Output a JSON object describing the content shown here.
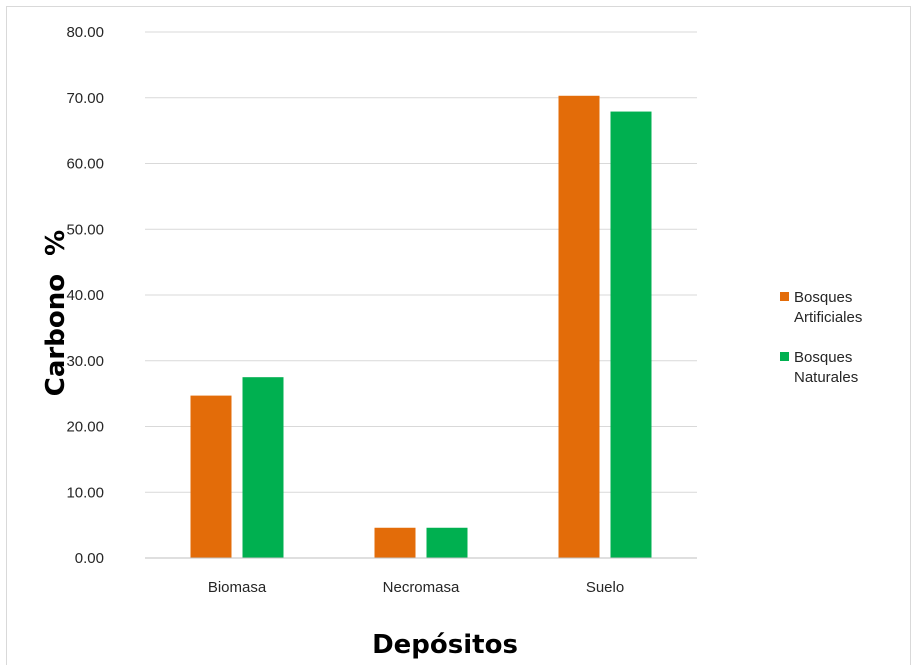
{
  "chart_data": {
    "type": "bar",
    "categories": [
      "Biomasa",
      "Necromasa",
      "Suelo"
    ],
    "series": [
      {
        "name": "Bosques Artificiales",
        "values": [
          24.7,
          4.6,
          70.3
        ],
        "color": "#E36C09"
      },
      {
        "name": "Bosques Naturales",
        "values": [
          27.5,
          4.6,
          67.9
        ],
        "color": "#00B050"
      }
    ],
    "xlabel": "Depósitos",
    "ylabel": "Carbono  %",
    "ylim": [
      0,
      80
    ],
    "yticks": [
      "0.00",
      "10.00",
      "20.00",
      "30.00",
      "40.00",
      "50.00",
      "60.00",
      "70.00",
      "80.00"
    ],
    "grid": true,
    "legend_position": "right",
    "legend_lines": [
      [
        "Bosques",
        "Artificiales"
      ],
      [
        "Bosques",
        "Naturales"
      ]
    ]
  }
}
